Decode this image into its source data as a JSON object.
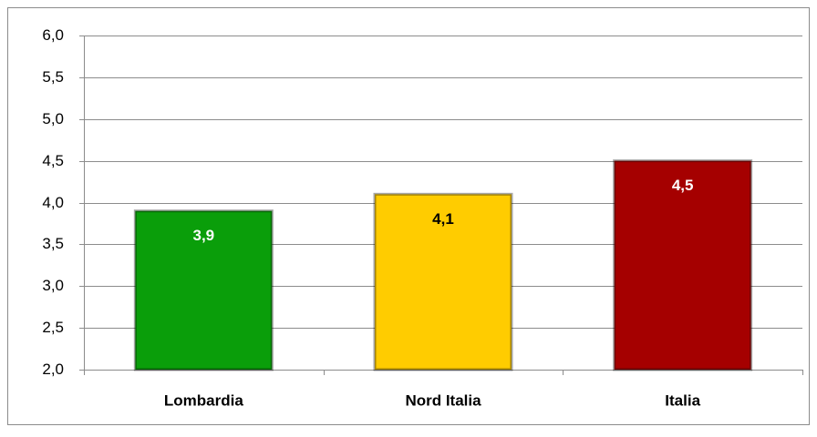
{
  "chart_data": {
    "type": "bar",
    "categories": [
      "Lombardia",
      "Nord Italia",
      "Italia"
    ],
    "values": [
      3.9,
      4.1,
      4.5
    ],
    "value_labels": [
      "3,9",
      "4,1",
      "4,5"
    ],
    "colors": [
      "#0a9e0a",
      "#ffcc00",
      "#a50000"
    ],
    "ylim": [
      2,
      6
    ],
    "yticks": [
      {
        "value": 2,
        "label": "2,0"
      },
      {
        "value": 2.5,
        "label": "2,5"
      },
      {
        "value": 3,
        "label": "3,0"
      },
      {
        "value": 3.5,
        "label": "3,5"
      },
      {
        "value": 4,
        "label": "4,0"
      },
      {
        "value": 4.5,
        "label": "4,5"
      },
      {
        "value": 5,
        "label": "5,0"
      },
      {
        "value": 5.5,
        "label": "5,5"
      },
      {
        "value": 6,
        "label": "6,0"
      }
    ],
    "grid": true
  }
}
